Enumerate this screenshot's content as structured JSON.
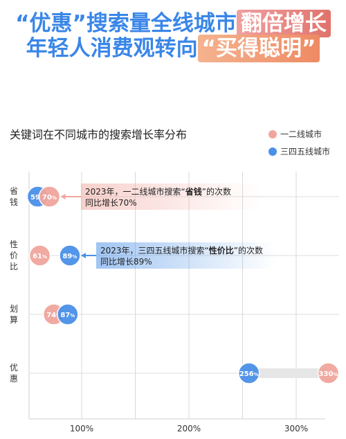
{
  "headline": {
    "line1_a": "“优惠”搜索量全线城市",
    "line1_b": "翻倍增长",
    "line2_a": "年轻人消费观转向",
    "line2_b": "“买得聪明”"
  },
  "colors": {
    "tier1": "#f0a69d",
    "tier3": "#4a90e8",
    "title_blue": "#3a86e8"
  },
  "chart_data": {
    "type": "scatter",
    "title": "关键词在不同城市的搜索增长率分布",
    "xlabel": "",
    "ylabel": "",
    "xlim": [
      50,
      340
    ],
    "x_ticks": [
      100,
      200,
      300
    ],
    "x_tick_labels": [
      "100%",
      "200%",
      "300%"
    ],
    "grid": true,
    "legend_position": "top-right",
    "categories": [
      "省钱",
      "性价比",
      "划算",
      "优惠"
    ],
    "series": [
      {
        "name": "一二线城市",
        "color": "#f0a69d",
        "values": [
          70,
          61,
          74,
          330
        ]
      },
      {
        "name": "三四五线城市",
        "color": "#4a90e8",
        "values": [
          59,
          89,
          87,
          256
        ]
      }
    ],
    "annotations": [
      {
        "category": "省钱",
        "series": 0,
        "line1_pre": "2023年，一二线城市搜索“",
        "keyword": "省钱",
        "line1_post": "”的次数",
        "line2": "同比增长70%"
      },
      {
        "category": "性价比",
        "series": 1,
        "line1_pre": "2023年，三四五线城市搜索“",
        "keyword": "性价比",
        "line1_post": "”的次数",
        "line2": "同比增长89%"
      }
    ]
  }
}
